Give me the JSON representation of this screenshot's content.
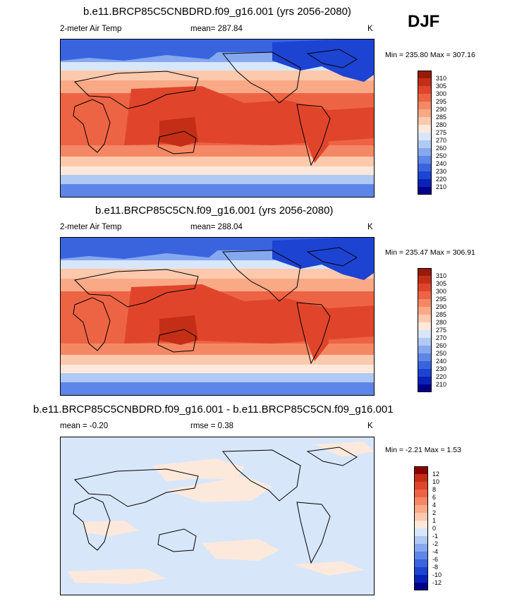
{
  "season": "DJF",
  "units": "K",
  "colors": {
    "abs_palette": [
      "#00008b",
      "#0a22b8",
      "#1d43d2",
      "#3a64de",
      "#5d86e8",
      "#86a8ef",
      "#b0c9f5",
      "#d8e6fa",
      "#fde9dc",
      "#fcc9ad",
      "#f9a986",
      "#f58864",
      "#ed6444",
      "#e0452c",
      "#c42e16",
      "#9a1a08"
    ],
    "diff_palette": [
      "#00008b",
      "#0a22b8",
      "#1d43d2",
      "#3a64de",
      "#5d86e8",
      "#86a8ef",
      "#b0c9f5",
      "#d8e6fa",
      "#fde9dc",
      "#fcc9ad",
      "#f9a986",
      "#f58864",
      "#ed6444",
      "#e0452c",
      "#c42e16",
      "#8b0000"
    ]
  },
  "panels": [
    {
      "title": "b.e11.BRCP85C5CNBDRD.f09_g16.001 (yrs 2056-2080)",
      "left_label": "2-meter Air Temp",
      "center_label": "mean= 287.84",
      "right_label": "K",
      "minmax": "Min = 235.80 Max = 307.16"
    },
    {
      "title": "b.e11.BRCP85C5CN.f09_g16.001 (yrs 2056-2080)",
      "left_label": "2-meter Air Temp",
      "center_label": "mean= 288.04",
      "right_label": "K",
      "minmax": "Min = 235.47 Max = 306.91"
    },
    {
      "title": "b.e11.BRCP85C5CNBDRD.f09_g16.001 - b.e11.BRCP85C5CN.f09_g16.001",
      "left_label": "mean =  -0.20",
      "center_label": "rmse =   0.38",
      "right_label": "K",
      "minmax": "Min =  -2.21 Max =   1.53"
    }
  ],
  "chart_data": [
    {
      "type": "heatmap",
      "title": "b.e11.BRCP85C5CNBDRD.f09_g16.001 (yrs 2056-2080)",
      "variable": "2-meter Air Temp",
      "units": "K",
      "mean": 287.84,
      "min": 235.8,
      "max": 307.16,
      "colorbar_levels": [
        310,
        305,
        300,
        295,
        290,
        285,
        280,
        275,
        270,
        260,
        250,
        240,
        230,
        220,
        210
      ]
    },
    {
      "type": "heatmap",
      "title": "b.e11.BRCP85C5CN.f09_g16.001 (yrs 2056-2080)",
      "variable": "2-meter Air Temp",
      "units": "K",
      "mean": 288.04,
      "min": 235.47,
      "max": 306.91,
      "colorbar_levels": [
        310,
        305,
        300,
        295,
        290,
        285,
        280,
        275,
        270,
        260,
        250,
        240,
        230,
        220,
        210
      ]
    },
    {
      "type": "heatmap",
      "title": "b.e11.BRCP85C5CNBDRD.f09_g16.001 - b.e11.BRCP85C5CN.f09_g16.001",
      "units": "K",
      "mean": -0.2,
      "rmse": 0.38,
      "min": -2.21,
      "max": 1.53,
      "colorbar_levels": [
        12,
        10,
        8,
        6,
        4,
        2,
        1,
        0,
        -1,
        -2,
        -4,
        -6,
        -8,
        -10,
        -12
      ]
    }
  ]
}
